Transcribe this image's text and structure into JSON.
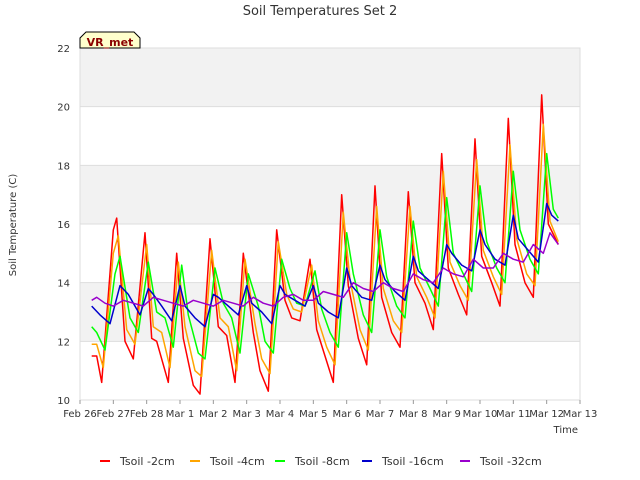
{
  "chart_data": {
    "type": "line",
    "title": "Soil Temperatures Set 2",
    "xlabel": "Time",
    "ylabel": "Soil Temperature (C)",
    "badge": "VR_met",
    "ylim": [
      10,
      22
    ],
    "yticks": [
      10,
      12,
      14,
      16,
      18,
      20,
      22
    ],
    "xlim": [
      0,
      15
    ],
    "x_unit": "days since Feb 26",
    "xticks": [
      0,
      1,
      2,
      3,
      4,
      5,
      6,
      7,
      8,
      9,
      10,
      11,
      12,
      13,
      14,
      15
    ],
    "xtick_labels": [
      "Feb 26",
      "Feb 27",
      "Feb 28",
      "Mar 1",
      "Mar 2",
      "Mar 3",
      "Mar 4",
      "Mar 5",
      "Mar 6",
      "Mar 7",
      "Mar 8",
      "Mar 9",
      "Mar 10",
      "Mar 11",
      "Mar 12",
      "Mar 13"
    ],
    "grid": true,
    "legend_position": "bottom",
    "series": [
      {
        "name": "Tsoil -2cm",
        "color": "#ff0000",
        "x": [
          0.35,
          0.5,
          0.65,
          1.0,
          1.1,
          1.35,
          1.6,
          1.95,
          2.15,
          2.3,
          2.65,
          2.9,
          3.1,
          3.4,
          3.6,
          3.9,
          4.15,
          4.4,
          4.65,
          4.9,
          5.2,
          5.4,
          5.65,
          5.9,
          6.15,
          6.35,
          6.6,
          6.9,
          7.1,
          7.35,
          7.6,
          7.85,
          8.05,
          8.35,
          8.6,
          8.85,
          9.05,
          9.35,
          9.6,
          9.85,
          10.05,
          10.35,
          10.6,
          10.85,
          11.05,
          11.35,
          11.6,
          11.85,
          12.05,
          12.35,
          12.6,
          12.85,
          13.05,
          13.35,
          13.6,
          13.85,
          14.05,
          14.35
        ],
        "y": [
          11.5,
          11.5,
          10.6,
          15.8,
          16.2,
          12.0,
          11.4,
          15.7,
          12.1,
          12.0,
          10.6,
          15.0,
          12.1,
          10.5,
          10.2,
          15.5,
          12.5,
          12.2,
          10.6,
          15.0,
          12.3,
          11.0,
          10.3,
          15.8,
          13.4,
          12.8,
          12.7,
          14.8,
          12.4,
          11.5,
          10.6,
          17.0,
          13.9,
          12.1,
          11.2,
          17.3,
          13.5,
          12.3,
          11.8,
          17.1,
          14.0,
          13.3,
          12.4,
          18.4,
          14.5,
          13.6,
          12.9,
          18.9,
          14.9,
          14.0,
          13.2,
          19.6,
          15.3,
          14.0,
          13.5,
          20.4,
          16.0,
          15.3
        ]
      },
      {
        "name": "Tsoil -4cm",
        "color": "#ffa500",
        "x": [
          0.35,
          0.5,
          0.7,
          1.0,
          1.15,
          1.4,
          1.65,
          2.0,
          2.2,
          2.45,
          2.7,
          2.95,
          3.15,
          3.45,
          3.65,
          3.95,
          4.2,
          4.45,
          4.7,
          4.95,
          5.25,
          5.45,
          5.7,
          5.95,
          6.2,
          6.4,
          6.65,
          6.95,
          7.15,
          7.4,
          7.65,
          7.9,
          8.1,
          8.4,
          8.65,
          8.9,
          9.1,
          9.4,
          9.65,
          9.9,
          10.1,
          10.4,
          10.65,
          10.9,
          11.1,
          11.4,
          11.65,
          11.9,
          12.1,
          12.4,
          12.65,
          12.9,
          13.1,
          13.4,
          13.65,
          13.9,
          14.1,
          14.35
        ],
        "y": [
          11.9,
          11.9,
          11.1,
          15.0,
          15.6,
          12.4,
          11.9,
          15.3,
          12.5,
          12.3,
          11.1,
          14.7,
          12.5,
          11.0,
          10.8,
          15.1,
          12.8,
          12.5,
          11.0,
          14.8,
          12.6,
          11.4,
          10.9,
          15.4,
          13.6,
          13.1,
          13.0,
          14.6,
          12.7,
          11.8,
          11.2,
          16.4,
          14.1,
          12.4,
          11.7,
          16.6,
          13.8,
          12.7,
          12.3,
          16.6,
          14.2,
          13.5,
          12.8,
          17.8,
          14.7,
          13.9,
          13.4,
          18.2,
          15.1,
          14.2,
          13.6,
          18.7,
          15.5,
          14.3,
          13.9,
          19.4,
          16.1,
          15.4
        ]
      },
      {
        "name": "Tsoil -8cm",
        "color": "#00ff00",
        "x": [
          0.35,
          0.5,
          0.75,
          1.05,
          1.2,
          1.5,
          1.75,
          2.05,
          2.3,
          2.55,
          2.8,
          3.05,
          3.25,
          3.55,
          3.75,
          4.05,
          4.3,
          4.55,
          4.8,
          5.05,
          5.35,
          5.55,
          5.8,
          6.05,
          6.3,
          6.5,
          6.75,
          7.05,
          7.25,
          7.5,
          7.75,
          8.0,
          8.2,
          8.5,
          8.75,
          9.0,
          9.2,
          9.5,
          9.75,
          10.0,
          10.2,
          10.5,
          10.75,
          11.0,
          11.2,
          11.5,
          11.75,
          12.0,
          12.2,
          12.5,
          12.75,
          13.0,
          13.2,
          13.5,
          13.75,
          14.0,
          14.2,
          14.35
        ],
        "y": [
          12.5,
          12.3,
          11.7,
          14.3,
          14.9,
          12.8,
          12.3,
          14.7,
          13.0,
          12.8,
          11.8,
          14.6,
          12.9,
          11.6,
          11.4,
          14.5,
          13.3,
          12.8,
          11.6,
          14.3,
          13.2,
          12.0,
          11.6,
          14.8,
          13.8,
          13.3,
          13.2,
          14.4,
          13.1,
          12.3,
          11.8,
          15.7,
          14.3,
          12.9,
          12.3,
          15.8,
          14.2,
          13.2,
          12.8,
          16.1,
          14.5,
          13.8,
          13.2,
          16.9,
          15.0,
          14.3,
          13.7,
          17.3,
          15.4,
          14.5,
          14.0,
          17.8,
          15.8,
          14.8,
          14.3,
          18.4,
          16.5,
          16.2
        ]
      },
      {
        "name": "Tsoil -16cm",
        "color": "#0000cc",
        "x": [
          0.35,
          0.6,
          0.9,
          1.2,
          1.45,
          1.8,
          2.05,
          2.2,
          2.45,
          2.75,
          3.0,
          3.15,
          3.45,
          3.75,
          4.0,
          4.15,
          4.45,
          4.75,
          5.0,
          5.15,
          5.45,
          5.75,
          6.0,
          6.15,
          6.45,
          6.75,
          7.0,
          7.15,
          7.45,
          7.75,
          8.0,
          8.15,
          8.45,
          8.75,
          9.0,
          9.15,
          9.45,
          9.75,
          10.0,
          10.15,
          10.45,
          10.75,
          11.0,
          11.15,
          11.45,
          11.75,
          12.0,
          12.15,
          12.45,
          12.75,
          13.0,
          13.15,
          13.45,
          13.75,
          14.0,
          14.15,
          14.35
        ],
        "y": [
          13.2,
          12.9,
          12.6,
          13.9,
          13.6,
          12.9,
          13.8,
          13.6,
          13.2,
          12.7,
          13.9,
          13.2,
          12.8,
          12.5,
          13.6,
          13.5,
          13.2,
          12.9,
          13.9,
          13.3,
          13.0,
          12.6,
          13.9,
          13.6,
          13.4,
          13.2,
          13.9,
          13.3,
          13.0,
          12.8,
          14.5,
          13.9,
          13.5,
          13.4,
          14.6,
          14.1,
          13.7,
          13.4,
          14.9,
          14.4,
          14.1,
          13.8,
          15.3,
          15.0,
          14.6,
          14.4,
          15.8,
          15.3,
          14.8,
          14.6,
          16.3,
          15.5,
          15.1,
          14.7,
          16.7,
          16.3,
          16.1
        ]
      },
      {
        "name": "Tsoil -32cm",
        "color": "#9900cc",
        "x": [
          0.35,
          0.5,
          0.75,
          1.0,
          1.3,
          1.6,
          1.9,
          2.2,
          2.5,
          2.8,
          3.1,
          3.4,
          3.7,
          4.0,
          4.3,
          4.6,
          4.9,
          5.2,
          5.5,
          5.8,
          6.1,
          6.4,
          6.7,
          7.0,
          7.3,
          7.6,
          7.9,
          8.2,
          8.5,
          8.8,
          9.1,
          9.4,
          9.7,
          10.0,
          10.3,
          10.6,
          10.9,
          11.2,
          11.5,
          11.8,
          12.1,
          12.4,
          12.7,
          13.0,
          13.3,
          13.6,
          13.9,
          14.1,
          14.35
        ],
        "y": [
          13.4,
          13.5,
          13.3,
          13.2,
          13.4,
          13.3,
          13.2,
          13.5,
          13.4,
          13.3,
          13.2,
          13.4,
          13.3,
          13.2,
          13.4,
          13.3,
          13.2,
          13.5,
          13.3,
          13.2,
          13.5,
          13.6,
          13.4,
          13.4,
          13.7,
          13.6,
          13.5,
          14.0,
          13.8,
          13.7,
          14.0,
          13.8,
          13.7,
          14.3,
          14.1,
          14.0,
          14.5,
          14.3,
          14.2,
          14.8,
          14.5,
          14.5,
          15.0,
          14.8,
          14.7,
          15.3,
          15.0,
          15.7,
          15.3
        ]
      }
    ]
  }
}
